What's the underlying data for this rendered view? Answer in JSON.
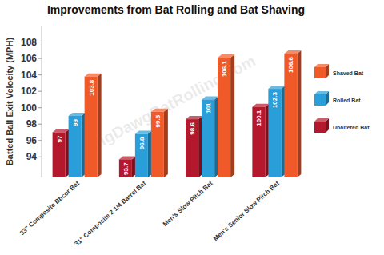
{
  "chart_data": {
    "type": "bar",
    "title": "Improvements from Bat Rolling and Bat Shaving",
    "y_label": "Batted Ball Exit Velocity (MPH)",
    "annotations": [
      "BigDawgBatRolling.com"
    ],
    "categories": [
      "33\" Composite Bbcor Bat",
      "31\" Composite 2 1/4 Barrel Bat",
      "Men's Slow Pitch Bat",
      "Men's Senior Slow Pitch Bat"
    ],
    "series": [
      {
        "name": "Unaltered Bat",
        "color": "#b3182c",
        "values": [
          97,
          93.7,
          98.6,
          100.1
        ]
      },
      {
        "name": "Rolled Bat",
        "color": "#2a9ed8",
        "values": [
          99,
          96.8,
          101,
          102.3
        ]
      },
      {
        "name": "Shaved Bat",
        "color": "#f05a28",
        "values": [
          103.8,
          99.5,
          106.1,
          106.6
        ]
      }
    ],
    "ylim": [
      91.5,
      110
    ],
    "yticks": [
      94,
      96,
      98,
      100,
      102,
      104,
      106,
      108
    ],
    "grid": false,
    "legend": "right",
    "data_labels": true
  }
}
